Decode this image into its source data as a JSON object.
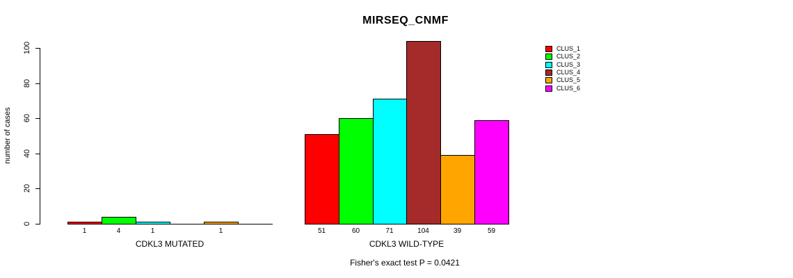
{
  "chart_data": {
    "type": "bar",
    "title": "MIRSEQ_CNMF",
    "ylabel": "number of cases",
    "xlabel": "",
    "ylim": [
      0,
      110
    ],
    "yticks": [
      0,
      20,
      40,
      60,
      80,
      100
    ],
    "grid": false,
    "annotation": "Fisher's exact test P = 0.0421",
    "legend": {
      "position": "right",
      "entries": [
        {
          "label": "CLUS_1",
          "color": "#FF0000"
        },
        {
          "label": "CLUS_2",
          "color": "#00FF00"
        },
        {
          "label": "CLUS_3",
          "color": "#00FFFF"
        },
        {
          "label": "CLUS_4",
          "color": "#A52A2A"
        },
        {
          "label": "CLUS_5",
          "color": "#FFA500"
        },
        {
          "label": "CLUS_6",
          "color": "#FF00FF"
        }
      ]
    },
    "groups": [
      {
        "label": "CDKL3 MUTATED",
        "categories": [
          "CLUS_1",
          "CLUS_2",
          "CLUS_3",
          "CLUS_4",
          "CLUS_5",
          "CLUS_6"
        ],
        "values": [
          1,
          4,
          1,
          0,
          1,
          0
        ],
        "bar_labels": [
          "1",
          "4",
          "1",
          "",
          "1",
          ""
        ]
      },
      {
        "label": "CDKL3 WILD-TYPE",
        "categories": [
          "CLUS_1",
          "CLUS_2",
          "CLUS_3",
          "CLUS_4",
          "CLUS_5",
          "CLUS_6"
        ],
        "values": [
          51,
          60,
          71,
          104,
          39,
          59
        ],
        "bar_labels": [
          "51",
          "60",
          "71",
          "104",
          "39",
          "59"
        ]
      }
    ]
  }
}
